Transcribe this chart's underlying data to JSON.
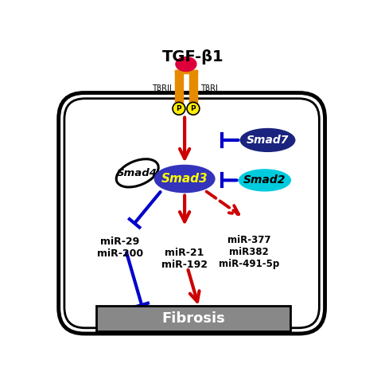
{
  "title": "TGF-β1",
  "bg_color": "#ffffff",
  "cell_border_color": "#000000",
  "fibrosis_box_color": "#888888",
  "fibrosis_text": "Fibrosis",
  "smad3_color": "#3333bb",
  "smad3_text": "Smad3",
  "smad3_text_color": "#ffff00",
  "smad4_color": "#ffffff",
  "smad4_text": "Smad4",
  "smad7_color": "#1a237e",
  "smad7_text": "Smad7",
  "smad7_text_color": "#ffffff",
  "smad2_color": "#00ccdd",
  "smad2_text": "Smad2",
  "smad2_text_color": "#000000",
  "tgf_receptor_color": "#e68a00",
  "tgf_ligand_color": "#dd003a",
  "phospho_color": "#ffee00",
  "arrow_red": "#cc0000",
  "arrow_blue": "#0000cc",
  "mir29_200_text": "miR-29\nmiR-200",
  "mir21_192_text": "miR-21\nmiR-192",
  "mir377_text": "miR-377\nmiR382\nmiR-491-5p",
  "tbrii_text": "TβRII",
  "tbri_text": "TβRI"
}
